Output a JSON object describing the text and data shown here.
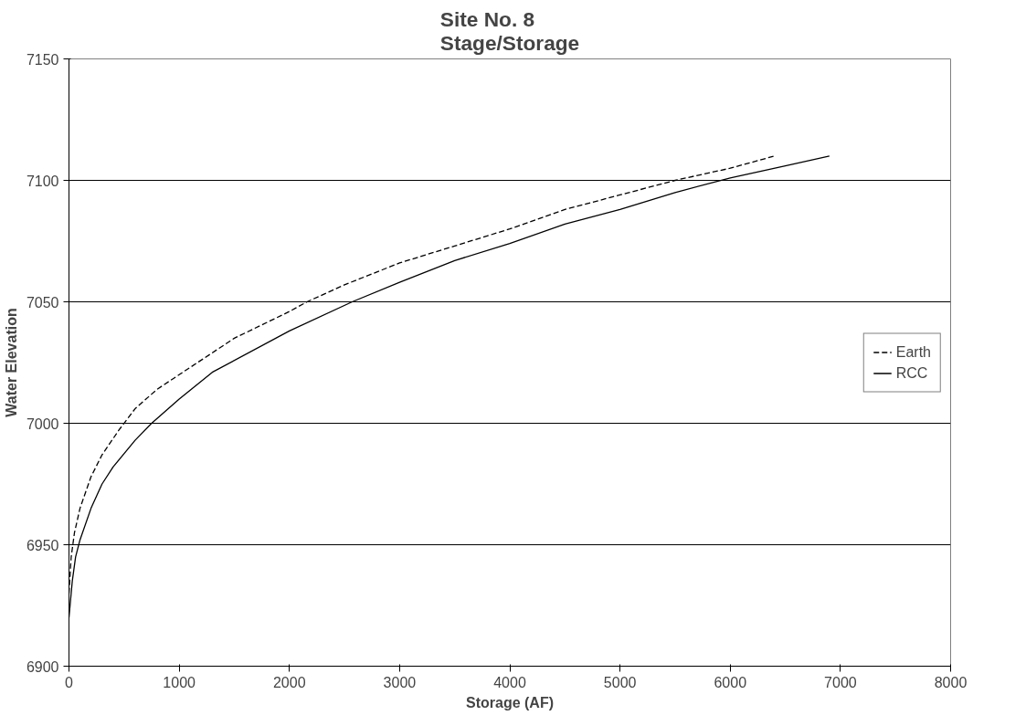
{
  "chart_data": {
    "type": "line",
    "title": "Site No. 8\nStage/Storage",
    "xlabel": "Storage (AF)",
    "ylabel": "Water Elevation",
    "xlim": [
      0,
      8000
    ],
    "xticks": [
      0,
      1000,
      2000,
      3000,
      4000,
      5000,
      6000,
      7000,
      8000
    ],
    "ylim": [
      6900,
      7150
    ],
    "yticks": [
      6900,
      6950,
      7000,
      7050,
      7100,
      7150
    ],
    "grid": "y",
    "legend": "right",
    "marker": "none",
    "series": [
      {
        "name": "Earth",
        "color": "#000000",
        "line_style": "dashed",
        "x": [
          0,
          20,
          50,
          100,
          200,
          300,
          450,
          600,
          800,
          1000,
          1500,
          2000,
          2160,
          2500,
          3000,
          3500,
          4000,
          4500,
          5000,
          5500,
          6000,
          6400
        ],
        "values": [
          6930,
          6945,
          6955,
          6965,
          6978,
          6987,
          6997,
          7006,
          7014,
          7020,
          7035,
          7046,
          7050,
          7057,
          7066,
          7073,
          7080,
          7088,
          7094,
          7100,
          7105,
          7110
        ]
      },
      {
        "name": "RCC",
        "color": "#000000",
        "line_style": "solid",
        "x": [
          0,
          30,
          60,
          100,
          200,
          300,
          400,
          600,
          750,
          1000,
          1300,
          2000,
          2570,
          3000,
          3500,
          4000,
          4500,
          5000,
          5500,
          6000,
          6500,
          6900
        ],
        "values": [
          6920,
          6935,
          6945,
          6952,
          6965,
          6975,
          6982,
          6993,
          7000,
          7010,
          7021,
          7038,
          7050,
          7058,
          7067,
          7074,
          7082,
          7088,
          7095,
          7101,
          7106,
          7110
        ]
      }
    ]
  }
}
